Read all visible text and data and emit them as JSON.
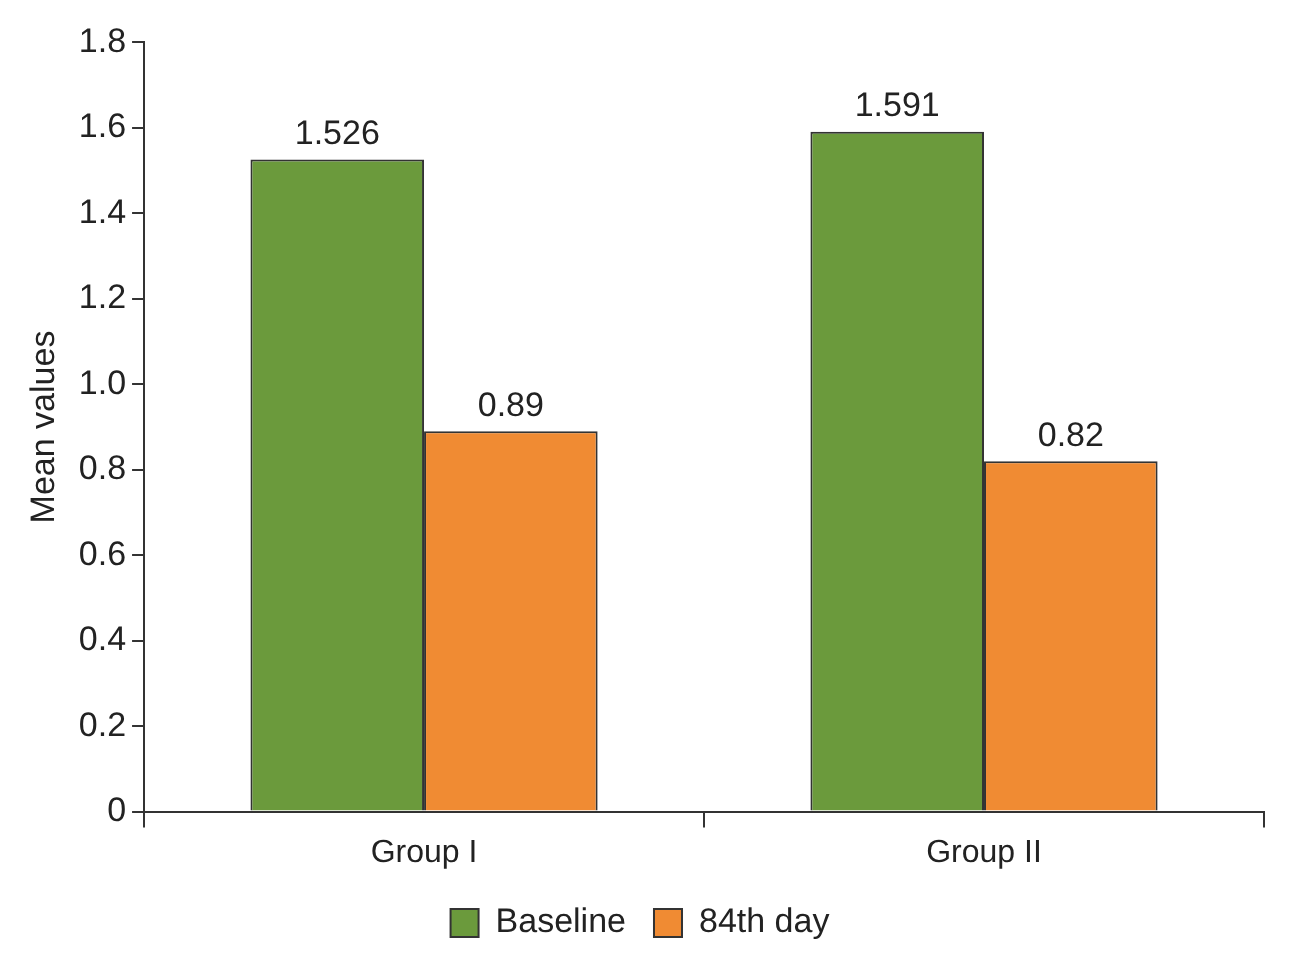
{
  "chart_data": {
    "type": "bar",
    "ylabel": "Mean values",
    "categories": [
      "Group I",
      "Group II"
    ],
    "series": [
      {
        "name": "Baseline",
        "color": "#6b9a3c",
        "values": [
          1.526,
          1.591
        ]
      },
      {
        "name": "84th day",
        "color": "#f08b33",
        "values": [
          0.89,
          0.82
        ]
      }
    ],
    "ylim": [
      0,
      1.8
    ],
    "yticks": [
      0,
      0.2,
      0.4,
      0.6,
      0.8,
      {
        "value": 1,
        "label": "1.0"
      },
      1.2,
      1.4,
      1.6,
      1.8
    ],
    "grid": false,
    "legend": "bottom",
    "data_labels": true
  }
}
